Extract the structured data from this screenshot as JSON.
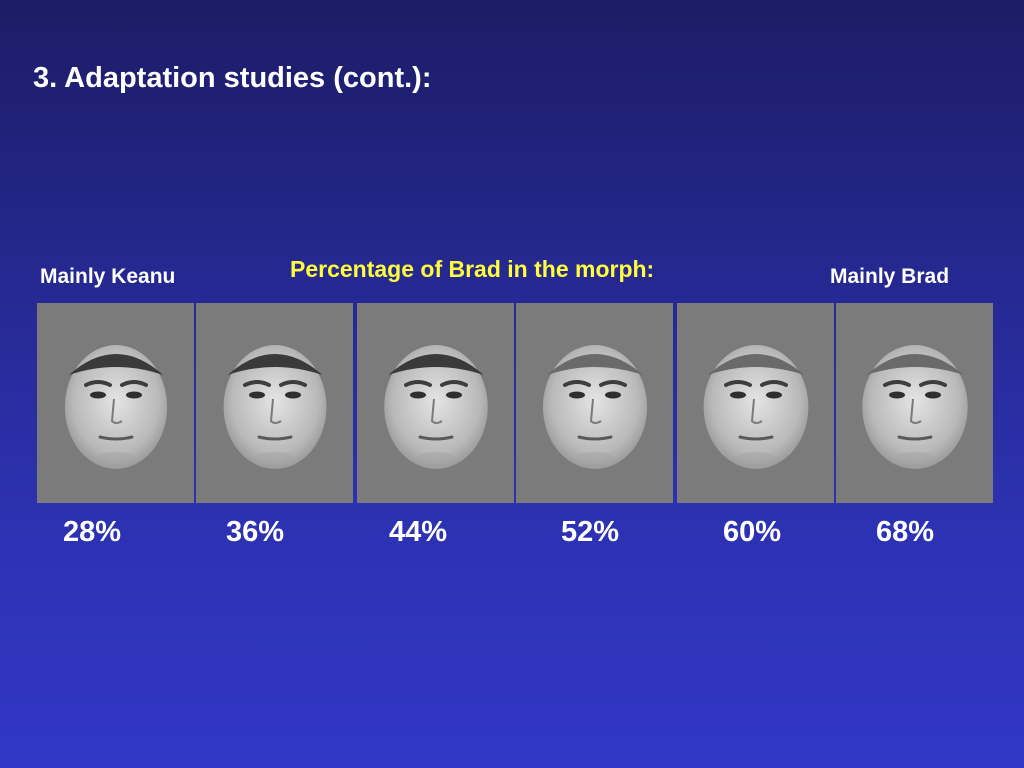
{
  "slide": {
    "title": "3. Adaptation studies (cont.):",
    "subtitle": "Percentage of Brad in the morph:",
    "left_label": "Mainly Keanu",
    "right_label": "Mainly Brad"
  },
  "morphs": [
    {
      "percent_label": "28%",
      "brad_fraction": 0.28
    },
    {
      "percent_label": "36%",
      "brad_fraction": 0.36
    },
    {
      "percent_label": "44%",
      "brad_fraction": 0.44
    },
    {
      "percent_label": "52%",
      "brad_fraction": 0.52
    },
    {
      "percent_label": "60%",
      "brad_fraction": 0.6
    },
    {
      "percent_label": "68%",
      "brad_fraction": 0.68
    }
  ],
  "colors": {
    "background_top": "#1c1c66",
    "background_bottom": "#3236c6",
    "subtitle": "#ffff3c",
    "panel": "#7b7b7b"
  }
}
